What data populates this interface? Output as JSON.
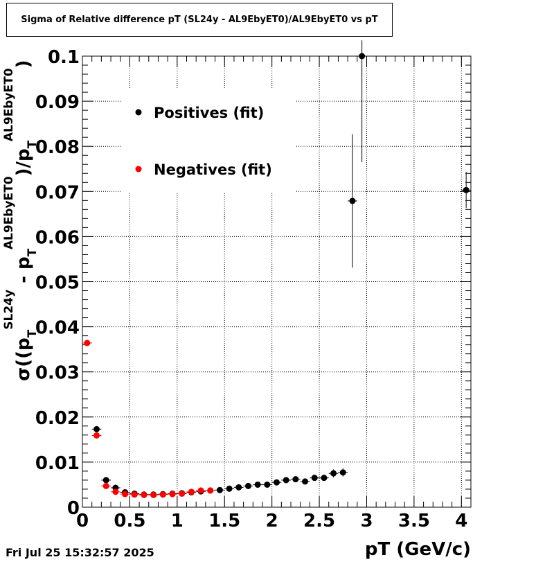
{
  "title": "Sigma of Relative difference pT (SL24y - AL9EbyET0)/AL9EbyET0 vs pT",
  "timestamp": "Fri Jul 25 15:32:57 2025",
  "colors": {
    "positives": "#000000",
    "negatives": "#ff0000",
    "grid": "#000000"
  },
  "chart_data": {
    "type": "scatter",
    "title": "Sigma of Relative difference pT (SL24y - AL9EbyET0)/AL9EbyET0 vs pT",
    "xlabel": "pT (GeV/c)",
    "ylabel": {
      "prefix": "σ((p",
      "sub1": "T",
      "sup1": "SL24y",
      "mid": " - p",
      "sub2": "T",
      "sup2": "AL9EbyET0",
      "mid2": ")/p",
      "sub3": "T",
      "sup3": "AL9EbyET0",
      "suffix": ")"
    },
    "xlim": [
      0,
      4.1
    ],
    "ylim": [
      0,
      0.1
    ],
    "grid": true,
    "legend_position": "top-left",
    "x_ticks": [
      "0",
      "0.5",
      "1",
      "1.5",
      "2",
      "2.5",
      "3",
      "3.5",
      "4"
    ],
    "x_tick_values": [
      0,
      0.5,
      1,
      1.5,
      2,
      2.5,
      3,
      3.5,
      4
    ],
    "y_ticks": [
      "0",
      "0.01",
      "0.02",
      "0.03",
      "0.04",
      "0.05",
      "0.06",
      "0.07",
      "0.08",
      "0.09",
      "0.1"
    ],
    "y_tick_values": [
      0,
      0.01,
      0.02,
      0.03,
      0.04,
      0.05,
      0.06,
      0.07,
      0.08,
      0.09,
      0.1
    ],
    "series": [
      {
        "name": "Positives (fit)",
        "color": "#000000",
        "x": [
          0.15,
          0.25,
          0.35,
          0.45,
          0.55,
          0.65,
          0.75,
          0.85,
          0.95,
          1.05,
          1.15,
          1.25,
          1.35,
          1.45,
          1.55,
          1.65,
          1.75,
          1.85,
          1.95,
          2.05,
          2.15,
          2.25,
          2.35,
          2.45,
          2.55,
          2.65,
          2.75,
          2.85,
          2.95,
          4.05
        ],
        "y": [
          0.0173,
          0.006,
          0.0043,
          0.0033,
          0.003,
          0.0028,
          0.0028,
          0.0029,
          0.003,
          0.0031,
          0.0033,
          0.0035,
          0.0037,
          0.0038,
          0.0041,
          0.0044,
          0.0047,
          0.005,
          0.005,
          0.0055,
          0.006,
          0.0062,
          0.0057,
          0.0065,
          0.0065,
          0.0075,
          0.0077,
          0.0679,
          0.1,
          0.0703
        ],
        "yerr": [
          0.0005,
          0.0004,
          0.0003,
          0.0003,
          0.0002,
          0.0002,
          0.0002,
          0.0002,
          0.0002,
          0.0002,
          0.0002,
          0.0002,
          0.0003,
          0.0003,
          0.0003,
          0.0003,
          0.0003,
          0.0003,
          0.0003,
          0.0004,
          0.0004,
          0.0005,
          0.0005,
          0.0006,
          0.0006,
          0.0009,
          0.0009,
          0.0148,
          0.0235,
          0.004
        ]
      },
      {
        "name": "Negatives (fit)",
        "color": "#ff0000",
        "x": [
          0.05,
          0.15,
          0.25,
          0.35,
          0.45,
          0.55,
          0.65,
          0.75,
          0.85,
          0.95,
          1.05,
          1.15,
          1.25,
          1.35
        ],
        "y": [
          0.0364,
          0.0159,
          0.0047,
          0.0034,
          0.0029,
          0.0028,
          0.0027,
          0.0027,
          0.0028,
          0.0029,
          0.003,
          0.0034,
          0.0037,
          0.0037
        ],
        "yerr": [
          0.0004,
          0.0004,
          0.0003,
          0.0003,
          0.0002,
          0.0002,
          0.0002,
          0.0002,
          0.0002,
          0.0002,
          0.0002,
          0.0002,
          0.0003,
          0.0003
        ]
      }
    ]
  }
}
